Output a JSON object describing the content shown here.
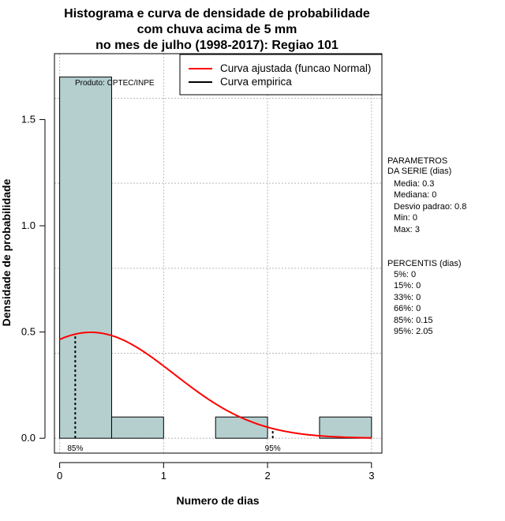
{
  "chart_data": {
    "type": "bar",
    "title": [
      "Histograma e curva de densidade de probabilidade",
      "com chuva acima de 5 mm",
      "no mes de julho (1998-2017): Regiao 101"
    ],
    "xlabel": "Numero de dias",
    "ylabel": "Densidade de probabilidade",
    "xlim": [
      -0.05,
      3.1
    ],
    "ylim": [
      -0.07,
      1.81
    ],
    "x_ticks": [
      0,
      1,
      2,
      3
    ],
    "y_ticks": [
      0.0,
      0.5,
      1.0,
      1.5
    ],
    "x_tick_labels": [
      "0",
      "1",
      "2",
      "3"
    ],
    "y_tick_labels": [
      "0.0",
      "0.5",
      "1.0",
      "1.5"
    ],
    "grid_x": [
      0,
      1,
      2,
      3
    ],
    "grid_y": [
      0.0,
      0.4,
      0.8,
      1.2,
      1.6
    ],
    "bins": [
      {
        "from": 0.0,
        "to": 0.5,
        "density": 1.7
      },
      {
        "from": 0.5,
        "to": 1.0,
        "density": 0.1
      },
      {
        "from": 1.0,
        "to": 1.5,
        "density": 0.0
      },
      {
        "from": 1.5,
        "to": 2.0,
        "density": 0.1
      },
      {
        "from": 2.0,
        "to": 2.5,
        "density": 0.0
      },
      {
        "from": 2.5,
        "to": 3.0,
        "density": 0.1
      }
    ],
    "bar_color": "#b5cfcf",
    "normal_curve": {
      "mean": 0.3,
      "sd": 0.8,
      "from": 0,
      "to": 3,
      "color": "#ff0000"
    },
    "percentile_markers": [
      {
        "x": 0.15,
        "label": "85%"
      },
      {
        "x": 2.05,
        "label": "95%"
      }
    ],
    "legend": [
      {
        "label": "Curva ajustada (funcao Normal)",
        "color": "#ff0000"
      },
      {
        "label": "Curva empirica",
        "color": "#000000"
      }
    ],
    "legend_position": "top-right",
    "annotation": "Produto: CPTEC/INPE"
  },
  "side_panel": {
    "params_title_1": "PARAMETROS",
    "params_title_2": "DA SERIE (dias)",
    "media": "Media: 0.3",
    "mediana": "Mediana: 0",
    "desvio": "Desvio padrao: 0.8",
    "min": "Min: 0",
    "max": "Max: 3",
    "percentis_title": "PERCENTIS (dias)",
    "p5": "5%: 0",
    "p15": "15%: 0",
    "p33": "33%: 0",
    "p66": "66%: 0",
    "p85": "85%: 0.15",
    "p95": "95%: 2.05"
  }
}
